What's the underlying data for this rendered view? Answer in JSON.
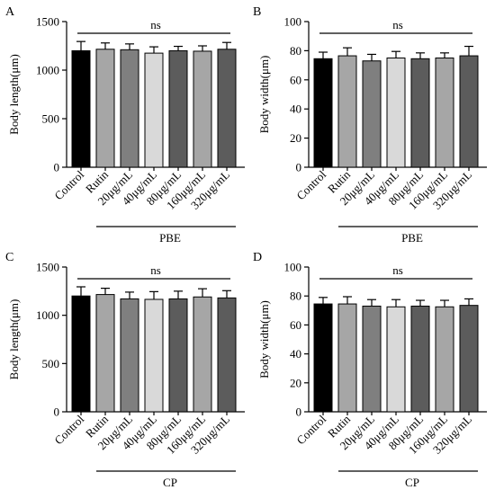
{
  "categories": [
    "Control",
    "Rutin",
    "20μg/mL",
    "40μg/mL",
    "80μg/mL",
    "160μg/mL",
    "320μg/mL"
  ],
  "bar_colors": [
    "#000000",
    "#a6a6a6",
    "#7f7f7f",
    "#d9d9d9",
    "#5c5c5c",
    "#a6a6a6",
    "#5c5c5c"
  ],
  "chart_data": [
    {
      "type": "bar",
      "panel": "A",
      "title": "",
      "ylabel": "Body length(μm)",
      "xlabel": "",
      "ylim": [
        0,
        1500
      ],
      "yticks": [
        0,
        500,
        1000,
        1500
      ],
      "group_label": "PBE",
      "significance": "ns",
      "categories": [
        "Control",
        "Rutin",
        "20μg/mL",
        "40μg/mL",
        "80μg/mL",
        "160μg/mL",
        "320μg/mL"
      ],
      "values": [
        1200,
        1215,
        1210,
        1175,
        1200,
        1195,
        1215
      ],
      "errors": [
        95,
        65,
        60,
        65,
        45,
        55,
        70
      ]
    },
    {
      "type": "bar",
      "panel": "B",
      "title": "",
      "ylabel": "Body width(μm)",
      "xlabel": "",
      "ylim": [
        0,
        100
      ],
      "yticks": [
        0,
        20,
        40,
        60,
        80,
        100
      ],
      "group_label": "PBE",
      "significance": "ns",
      "categories": [
        "Control",
        "Rutin",
        "20μg/mL",
        "40μg/mL",
        "80μg/mL",
        "160μg/mL",
        "320μg/mL"
      ],
      "values": [
        74.5,
        76.5,
        73,
        75,
        74.5,
        75,
        76.5
      ],
      "errors": [
        4.5,
        5.5,
        4.5,
        4.5,
        4,
        3.5,
        6.5
      ]
    },
    {
      "type": "bar",
      "panel": "C",
      "title": "",
      "ylabel": "Body length(μm)",
      "xlabel": "",
      "ylim": [
        0,
        1500
      ],
      "yticks": [
        0,
        500,
        1000,
        1500
      ],
      "group_label": "CP",
      "significance": "ns",
      "categories": [
        "Control",
        "Rutin",
        "20μg/mL",
        "40μg/mL",
        "80μg/mL",
        "160μg/mL",
        "320μg/mL"
      ],
      "values": [
        1200,
        1215,
        1170,
        1165,
        1170,
        1190,
        1180
      ],
      "errors": [
        95,
        65,
        70,
        80,
        80,
        85,
        75
      ]
    },
    {
      "type": "bar",
      "panel": "D",
      "title": "",
      "ylabel": "Body width(μm)",
      "xlabel": "",
      "ylim": [
        0,
        100
      ],
      "yticks": [
        0,
        20,
        40,
        60,
        80,
        100
      ],
      "group_label": "CP",
      "significance": "ns",
      "categories": [
        "Control",
        "Rutin",
        "20μg/mL",
        "40μg/mL",
        "80μg/mL",
        "160μg/mL",
        "320μg/mL"
      ],
      "values": [
        74.5,
        74.5,
        73,
        72.5,
        73,
        72.5,
        73.5
      ],
      "errors": [
        4.5,
        5,
        4.5,
        5,
        4,
        4.5,
        4.5
      ]
    }
  ]
}
